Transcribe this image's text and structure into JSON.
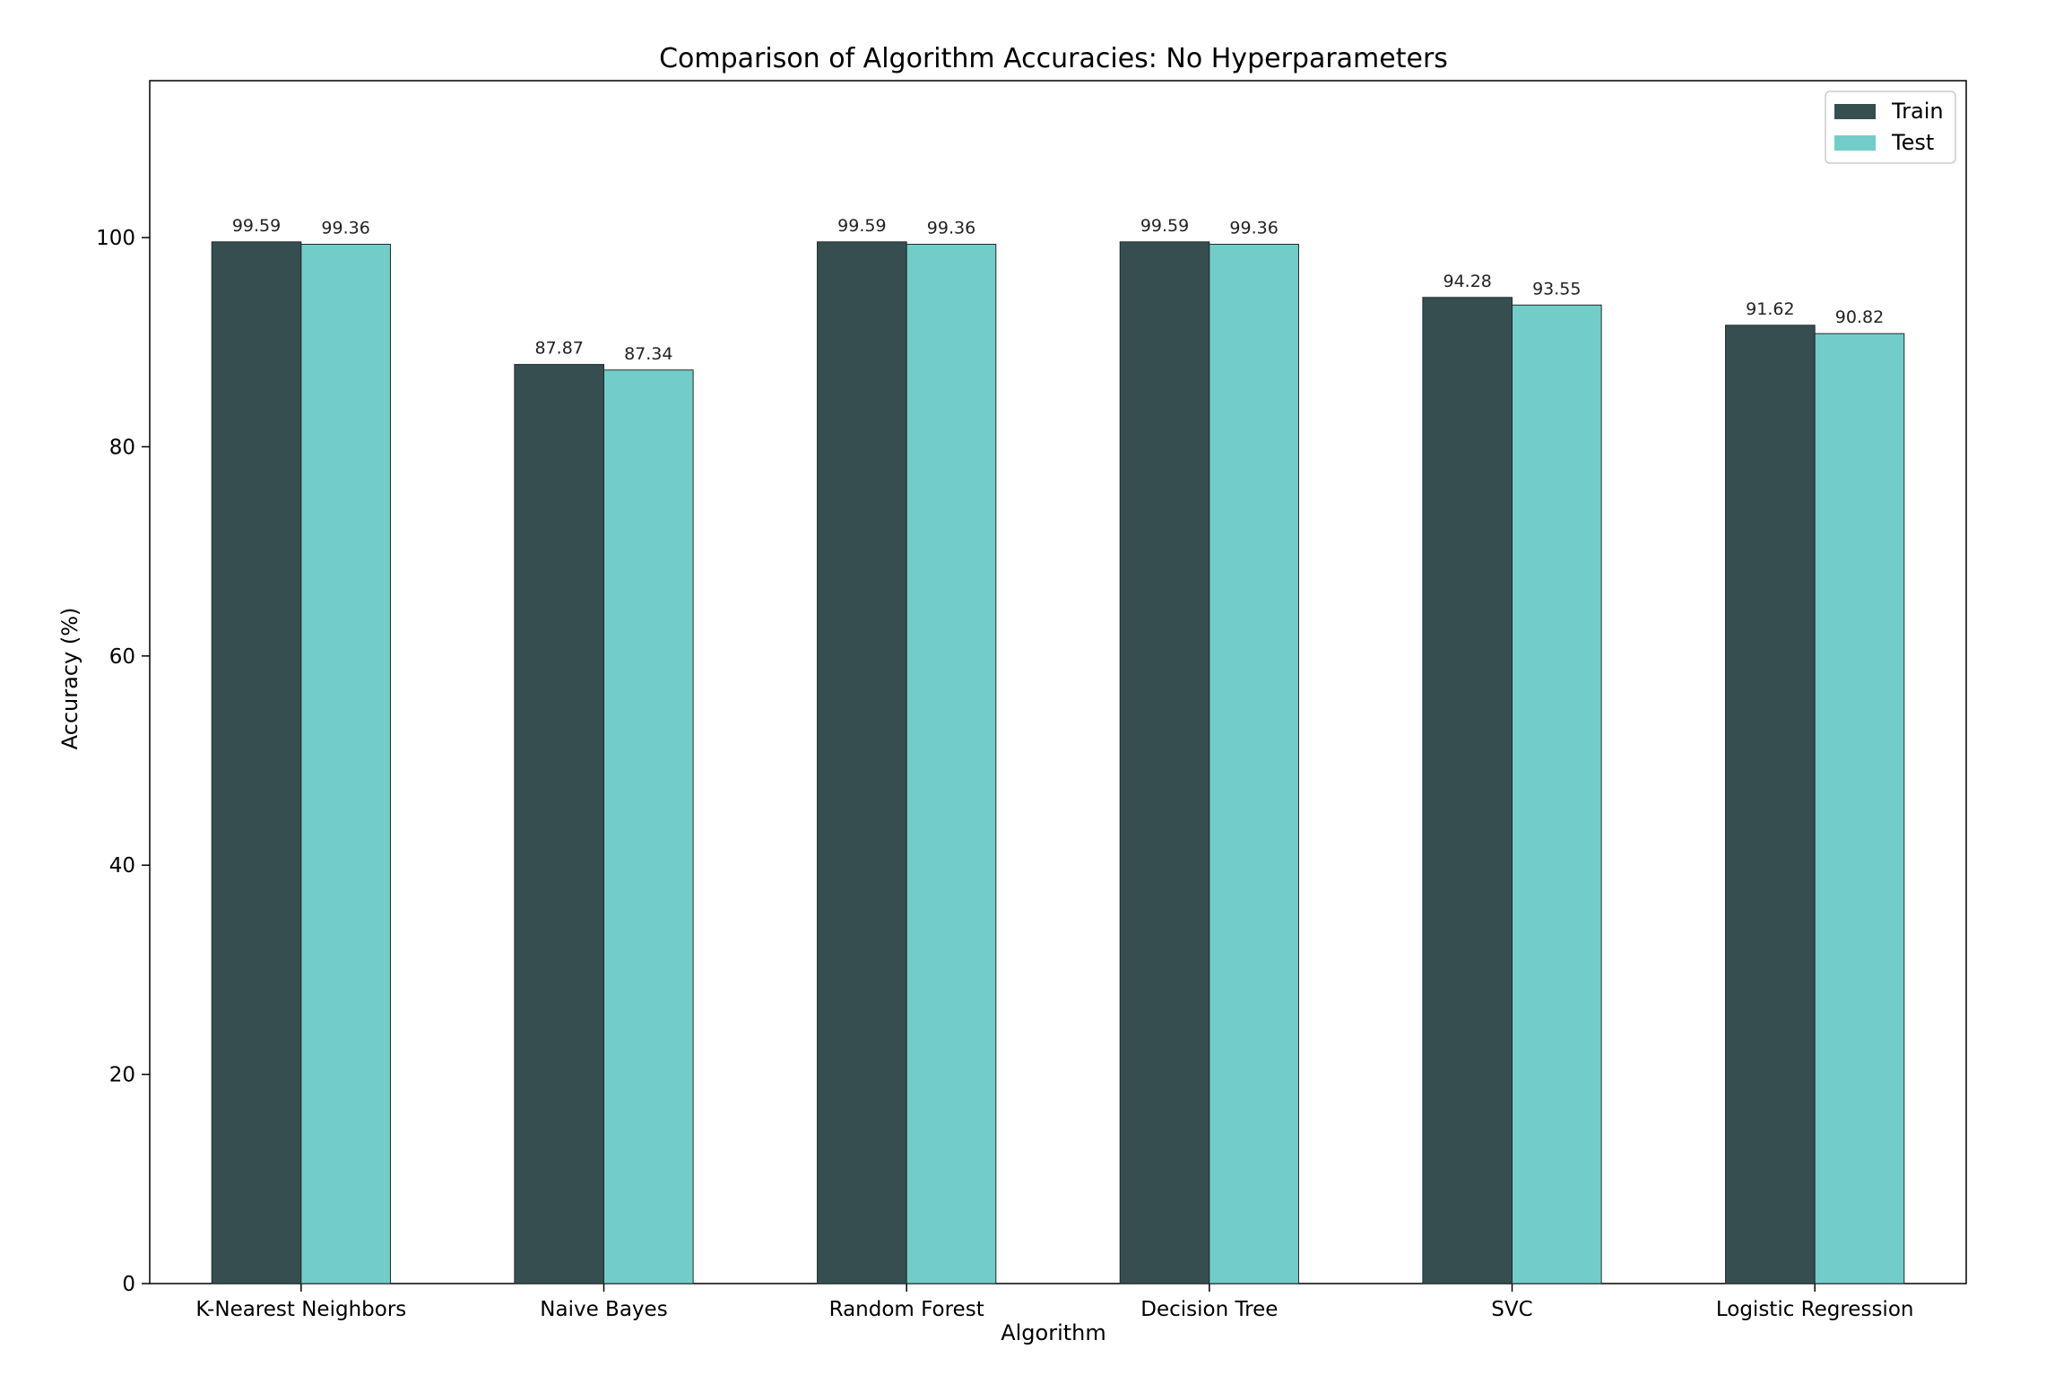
{
  "chart_data": {
    "type": "bar",
    "title": "Comparison of Algorithm Accuracies: No Hyperparameters",
    "xlabel": "Algorithm",
    "ylabel": "Accuracy (%)",
    "categories": [
      "K-Nearest Neighbors",
      "Naive Bayes",
      "Random Forest",
      "Decision Tree",
      "SVC",
      "Logistic Regression"
    ],
    "series": [
      {
        "name": "Train",
        "color": "#364e50",
        "values": [
          99.59,
          87.87,
          99.59,
          99.59,
          94.28,
          91.62
        ],
        "labels": [
          "99.59",
          "87.87",
          "99.59",
          "99.59",
          "94.28",
          "91.62"
        ]
      },
      {
        "name": "Test",
        "color": "#72cdc9",
        "values": [
          99.36,
          87.34,
          99.36,
          99.36,
          93.55,
          90.82
        ],
        "labels": [
          "99.36",
          "87.34",
          "99.36",
          "99.36",
          "93.55",
          "90.82"
        ]
      }
    ],
    "ylim": [
      0,
      115
    ],
    "yticks": [
      0,
      20,
      40,
      60,
      80,
      100
    ],
    "ytick_labels": [
      "0",
      "20",
      "40",
      "60",
      "80",
      "100"
    ],
    "grid": false,
    "legend_position": "top-right"
  }
}
